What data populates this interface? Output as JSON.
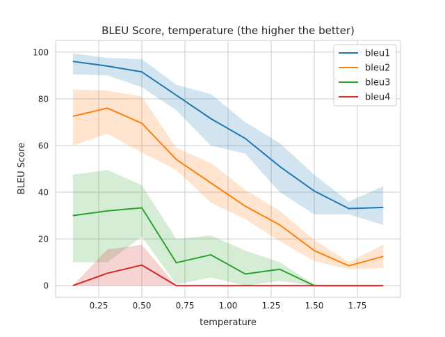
{
  "chart_data": {
    "type": "line",
    "title": "BLEU Score, temperature (the higher the better)",
    "xlabel": "temperature",
    "ylabel": "BLEU Score",
    "xlim": [
      0.0,
      2.0
    ],
    "ylim": [
      -5,
      105
    ],
    "xticks": [
      0.25,
      0.5,
      0.75,
      1.0,
      1.25,
      1.5,
      1.75
    ],
    "xtick_labels": [
      "0.25",
      "0.50",
      "0.75",
      "1.00",
      "1.25",
      "1.50",
      "1.75"
    ],
    "yticks": [
      0,
      20,
      40,
      60,
      80,
      100
    ],
    "ytick_labels": [
      "0",
      "20",
      "40",
      "60",
      "80",
      "100"
    ],
    "grid": true,
    "legend_position": "top-right",
    "x": [
      0.1,
      0.3,
      0.5,
      0.7,
      0.9,
      1.1,
      1.3,
      1.5,
      1.7,
      1.9
    ],
    "series": [
      {
        "name": "bleu1",
        "color": "#1f77b4",
        "values": [
          96,
          94,
          91.5,
          81.5,
          71.5,
          63,
          51,
          40.5,
          33,
          33.5
        ],
        "lower": [
          90.5,
          90,
          85,
          75,
          60,
          56.5,
          40,
          30.5,
          30.5,
          26
        ],
        "upper": [
          99.5,
          97.5,
          97,
          86,
          82,
          70,
          61,
          47.5,
          36,
          42.5
        ]
      },
      {
        "name": "bleu2",
        "color": "#ff7f0e",
        "values": [
          72.5,
          76,
          69.5,
          54,
          44,
          34,
          26,
          15,
          8.5,
          12.5
        ],
        "lower": [
          60,
          65,
          57,
          49.5,
          35.5,
          28.5,
          19,
          10.5,
          7,
          7.5
        ],
        "upper": [
          84,
          83.5,
          81,
          59,
          52.5,
          41,
          32,
          19.5,
          10,
          17.5
        ]
      },
      {
        "name": "bleu3",
        "color": "#2ca02c",
        "values": [
          30,
          32,
          33.3,
          9.8,
          13.2,
          5,
          7,
          0,
          0,
          0
        ],
        "lower": [
          10,
          10,
          21,
          0.5,
          3.5,
          0,
          2,
          0,
          0,
          0
        ],
        "upper": [
          47.5,
          49.5,
          43,
          20,
          21.5,
          15,
          10,
          0.5,
          0,
          0
        ]
      },
      {
        "name": "bleu4",
        "color": "#d62728",
        "values": [
          0,
          5.3,
          8.8,
          0,
          0,
          0,
          0,
          0,
          0,
          0
        ],
        "lower": [
          0,
          0,
          0,
          0,
          0,
          0,
          0,
          0,
          0,
          0
        ],
        "upper": [
          0,
          15.5,
          17.5,
          0,
          0,
          0,
          0,
          0,
          0,
          0
        ]
      }
    ]
  }
}
